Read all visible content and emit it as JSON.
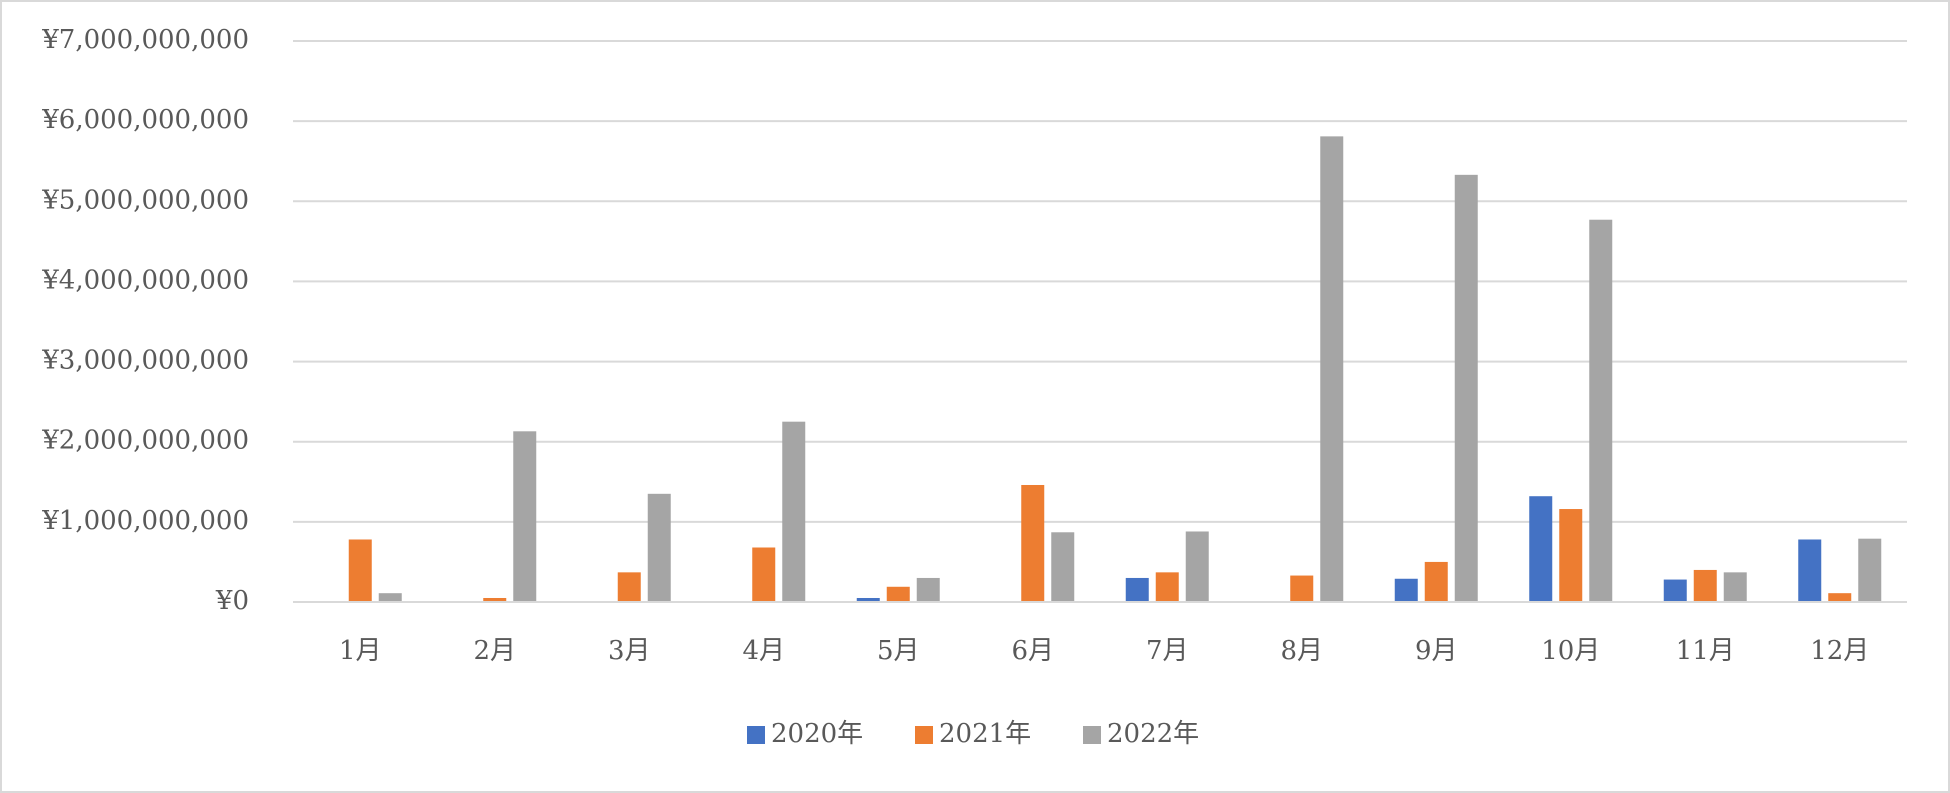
{
  "chart_data": {
    "type": "bar",
    "categories": [
      "1月",
      "2月",
      "3月",
      "4月",
      "5月",
      "6月",
      "7月",
      "8月",
      "9月",
      "10月",
      "11月",
      "12月"
    ],
    "series": [
      {
        "name": "2020年",
        "color": "#4472c4",
        "values": [
          0,
          0,
          0,
          0,
          50000000,
          0,
          300000000,
          0,
          290000000,
          1320000000,
          280000000,
          780000000
        ]
      },
      {
        "name": "2021年",
        "color": "#ed7d31",
        "values": [
          780000000,
          50000000,
          370000000,
          680000000,
          190000000,
          1460000000,
          370000000,
          330000000,
          500000000,
          1160000000,
          400000000,
          110000000
        ]
      },
      {
        "name": "2022年",
        "color": "#a5a5a5",
        "values": [
          110000000,
          2130000000,
          1350000000,
          2250000000,
          300000000,
          870000000,
          880000000,
          5810000000,
          5330000000,
          4770000000,
          370000000,
          790000000
        ]
      }
    ],
    "ylim": [
      0,
      7000000000
    ],
    "yticks": [
      {
        "value": 0,
        "label": "¥0"
      },
      {
        "value": 1000000000,
        "label": "¥1,000,000,000"
      },
      {
        "value": 2000000000,
        "label": "¥2,000,000,000"
      },
      {
        "value": 3000000000,
        "label": "¥3,000,000,000"
      },
      {
        "value": 4000000000,
        "label": "¥4,000,000,000"
      },
      {
        "value": 5000000000,
        "label": "¥5,000,000,000"
      },
      {
        "value": 6000000000,
        "label": "¥6,000,000,000"
      },
      {
        "value": 7000000000,
        "label": "¥7,000,000,000"
      }
    ],
    "grid": true,
    "legend": "bottom"
  }
}
